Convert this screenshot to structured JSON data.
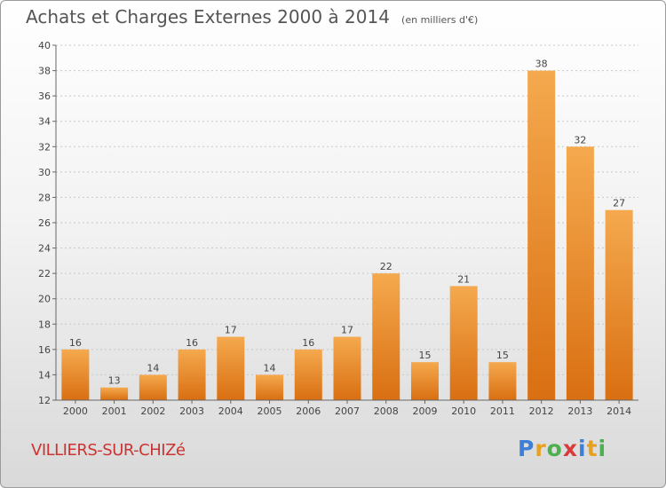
{
  "header": {
    "title": "Achats et Charges Externes 2000 à 2014",
    "subtitle": "(en milliers d'€)"
  },
  "footer": {
    "commune": "VILLIERS-SUR-CHIZé",
    "logo": "Proxiti",
    "logo_letters": [
      {
        "char": "P",
        "color": "#3b7fd9"
      },
      {
        "char": "r",
        "color": "#e8a020"
      },
      {
        "char": "o",
        "color": "#4caf50"
      },
      {
        "char": "x",
        "color": "#d93b3b"
      },
      {
        "char": "i",
        "color": "#3b7fd9"
      },
      {
        "char": "t",
        "color": "#e8a020"
      },
      {
        "char": "i",
        "color": "#4caf50"
      }
    ]
  },
  "colors": {
    "bar_top": "#f5a94e",
    "bar_bottom": "#d96f12",
    "grid": "#c8c8c8",
    "axis": "#666666"
  },
  "chart_data": {
    "type": "bar",
    "title": "Achats et Charges Externes 2000 à 2014",
    "subtitle": "(en milliers d'€)",
    "categories": [
      "2000",
      "2001",
      "2002",
      "2003",
      "2004",
      "2005",
      "2006",
      "2007",
      "2008",
      "2009",
      "2010",
      "2011",
      "2012",
      "2013",
      "2014"
    ],
    "values": [
      16,
      13,
      14,
      16,
      17,
      14,
      16,
      17,
      22,
      15,
      21,
      15,
      38,
      32,
      27
    ],
    "ylim": [
      12,
      40
    ],
    "yticks": [
      12,
      14,
      16,
      18,
      20,
      22,
      24,
      26,
      28,
      30,
      32,
      34,
      36,
      38,
      40
    ],
    "grid": true,
    "legend": "none"
  }
}
